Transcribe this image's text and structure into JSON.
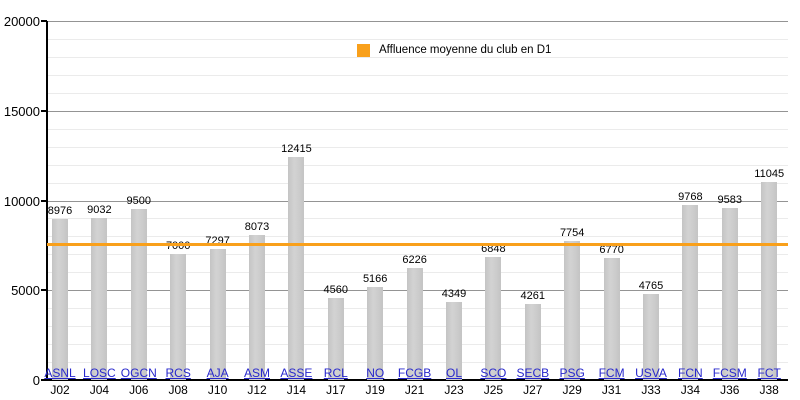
{
  "legend": {
    "label": "Affluence moyenne du club en D1"
  },
  "colors": {
    "average_line": "#F9A01B",
    "bar": "#C9C9C9",
    "club_link": "#2828CC",
    "major_grid": "#949494",
    "minor_grid": "#EBEBEB",
    "axis": "#000000"
  },
  "chart_data": {
    "type": "bar",
    "title": "",
    "legend": [
      "Affluence moyenne du club en D1"
    ],
    "legend_position": "top-center",
    "categories_clubs": [
      "ASNL",
      "LOSC",
      "OGCN",
      "RCS",
      "AJA",
      "ASM",
      "ASSE",
      "RCL",
      "NO",
      "FCGB",
      "OL",
      "SCO",
      "SECB",
      "PSG",
      "FCM",
      "USVA",
      "FCN",
      "FCSM",
      "FCT"
    ],
    "categories_matchdays": [
      "J02",
      "J04",
      "J06",
      "J08",
      "J10",
      "J12",
      "J14",
      "J17",
      "J19",
      "J21",
      "J23",
      "J25",
      "J27",
      "J29",
      "J31",
      "J33",
      "J34",
      "J36",
      "J38"
    ],
    "values": [
      8976,
      9032,
      9500,
      7000,
      7297,
      8073,
      12415,
      4560,
      5166,
      6226,
      4349,
      6848,
      4261,
      7754,
      6770,
      4765,
      9768,
      9583,
      11045
    ],
    "average_line_value": 7547,
    "ylim": [
      0,
      20000
    ],
    "y_ticks": [
      0,
      5000,
      10000,
      15000,
      20000
    ],
    "y_tick_labels": [
      "0",
      "5000",
      "10000",
      "15000",
      "20000"
    ],
    "y_minor_step": 1000,
    "grid": true
  }
}
